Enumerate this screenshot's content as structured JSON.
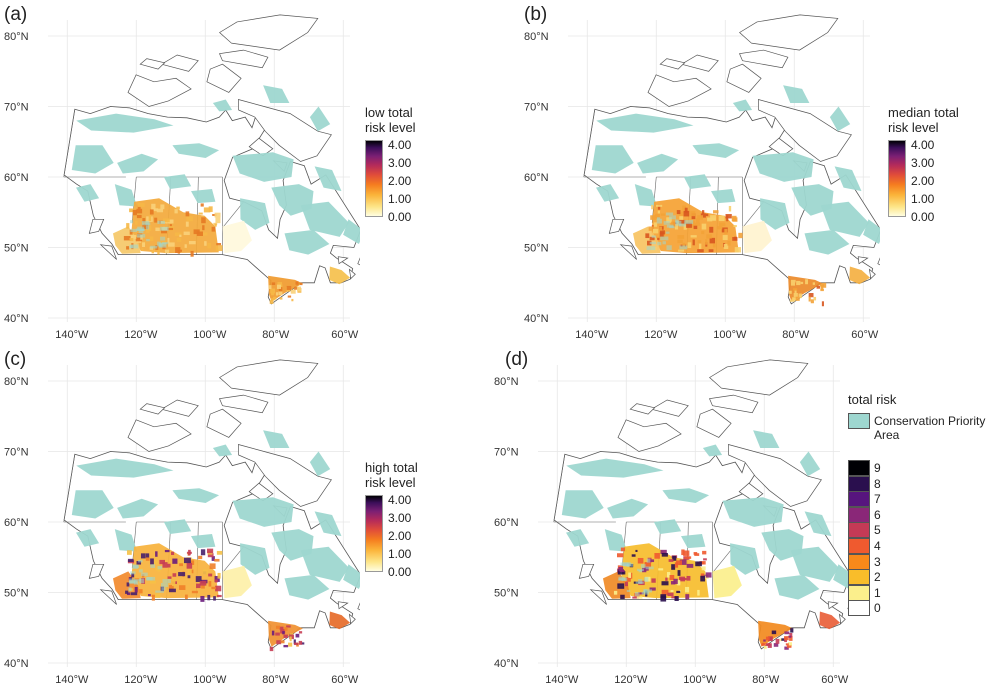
{
  "panels": [
    {
      "label": "(a)",
      "legend_title": "low total\nrisk level",
      "ticks": [
        "4.00",
        "3.00",
        "2.00",
        "1.00",
        "0.00"
      ]
    },
    {
      "label": "(b)",
      "legend_title": "median total\nrisk level",
      "ticks": [
        "4.00",
        "3.00",
        "2.00",
        "1.00",
        "0.00"
      ]
    },
    {
      "label": "(c)",
      "legend_title": "high total\nrisk level",
      "ticks": [
        "4.00",
        "3.00",
        "2.00",
        "1.00",
        "0.00"
      ]
    },
    {
      "label": "(d)",
      "legend_title": "total risk",
      "cpa_label": "Conservation Priority Area",
      "levels": [
        "9",
        "8",
        "7",
        "6",
        "5",
        "4",
        "3",
        "2",
        "1",
        "0"
      ]
    }
  ],
  "axes": {
    "lat_labels": [
      "80°N",
      "70°N",
      "60°N",
      "50°N",
      "40°N"
    ],
    "lon_labels": [
      "140°W",
      "120°W",
      "100°W",
      "80°W",
      "60°W"
    ]
  },
  "colors": {
    "cpa": "#9ed7d0",
    "levels": [
      "#000004",
      "#2a0f4e",
      "#57157e",
      "#8a2778",
      "#c43a56",
      "#ef5a2f",
      "#f8891a",
      "#f9bd2a",
      "#fbef8c",
      "#ffffff"
    ]
  }
}
